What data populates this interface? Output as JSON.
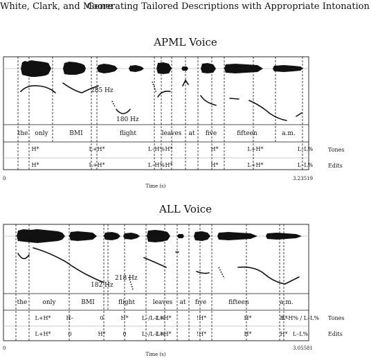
{
  "header": {
    "left": "White, Clark, and Moore",
    "right": "Generating Tailored Descriptions with Appropriate Intonation"
  },
  "figures": [
    {
      "title": "APML Voice",
      "pitch_labels": [
        {
          "text": "285 Hz"
        },
        {
          "text": "180 Hz"
        }
      ],
      "words": [
        "the",
        "only",
        "BMI",
        "flight",
        "leaves",
        "at",
        "five",
        "fifteen",
        "a.m."
      ],
      "tones": [
        "H*",
        "L+H*",
        "L–H%",
        "H*",
        "H*",
        "L+H*",
        "L–L%"
      ],
      "edits": [
        "H*",
        "L+H*",
        "L–H%",
        "H*",
        "H*",
        "L+H*",
        "L–L%"
      ],
      "tier_labels": [
        "Tones",
        "Edits"
      ],
      "time_start": "0",
      "time_end": "3.23519",
      "time_label": "Time (s)"
    },
    {
      "title": "ALL Voice",
      "pitch_labels": [
        {
          "text": "218 Hz"
        },
        {
          "text": "182 Hz"
        }
      ],
      "words": [
        "the",
        "only",
        "BMI",
        "flight",
        "leaves",
        "at",
        "five",
        "fifteen",
        "a.m."
      ],
      "tones": [
        "L+H*",
        "H–",
        "0",
        "H*",
        "L–/L–L%",
        "L+H*",
        "!H*",
        "H*",
        "H*",
        "L–H% / L–L%"
      ],
      "edits": [
        "L+H*",
        "0",
        "H*",
        "0",
        "L–/L–L%",
        "L+H*",
        "!H*",
        "H*",
        "H*",
        "L–L%"
      ],
      "tier_labels": [
        "Tones",
        "Edits"
      ],
      "time_start": "0",
      "time_end": "3.05581",
      "time_label": "Time (s)"
    }
  ]
}
